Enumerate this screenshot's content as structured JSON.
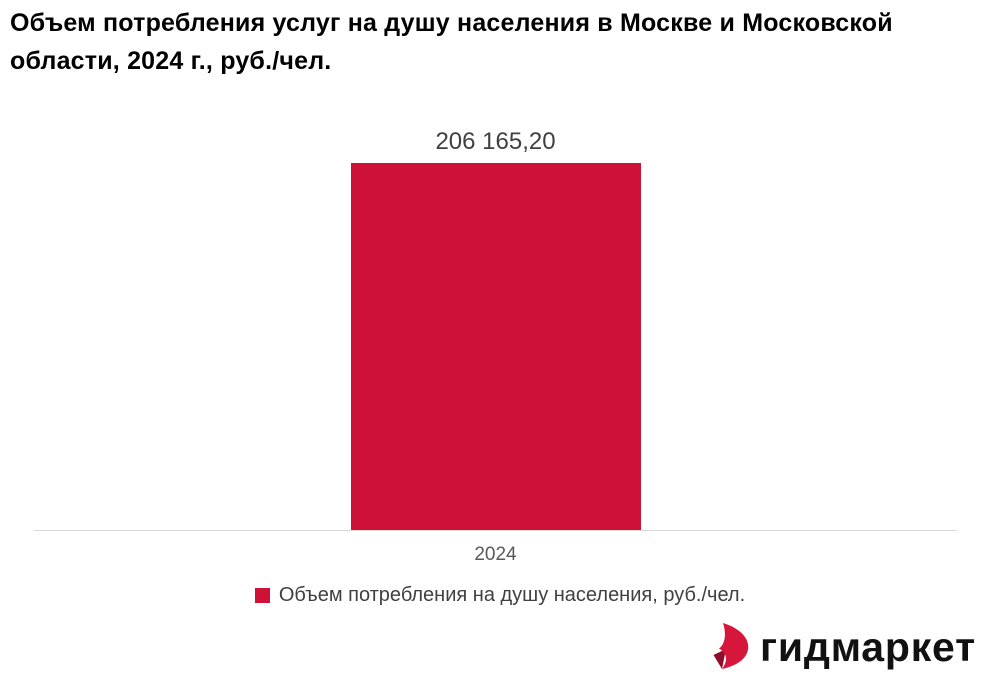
{
  "chart_data": {
    "type": "bar",
    "title": "Объем потребления услуг на душу населения в Москве и Московской области, 2024 г., руб./чел.",
    "categories": [
      "2024"
    ],
    "series": [
      {
        "name": "Объем потребления на душу населения, руб./чел.",
        "values": [
          206165.2
        ],
        "color": "#CE1137"
      }
    ],
    "value_labels": [
      "206 165,20"
    ],
    "ylim": [
      0,
      230000
    ],
    "grid": false,
    "legend_position": "bottom",
    "axis_line_color": "#D9D9D9",
    "value_label_color": "#404040",
    "tick_label_color": "#595959",
    "title_color": "#000000"
  },
  "branding": {
    "logo_text": "гидмаркет",
    "logo_icon": "gidmarket-flame-icon",
    "logo_color": "#D6173B",
    "logo_fold_color": "#8E0D2A",
    "logo_text_color": "#111111"
  }
}
